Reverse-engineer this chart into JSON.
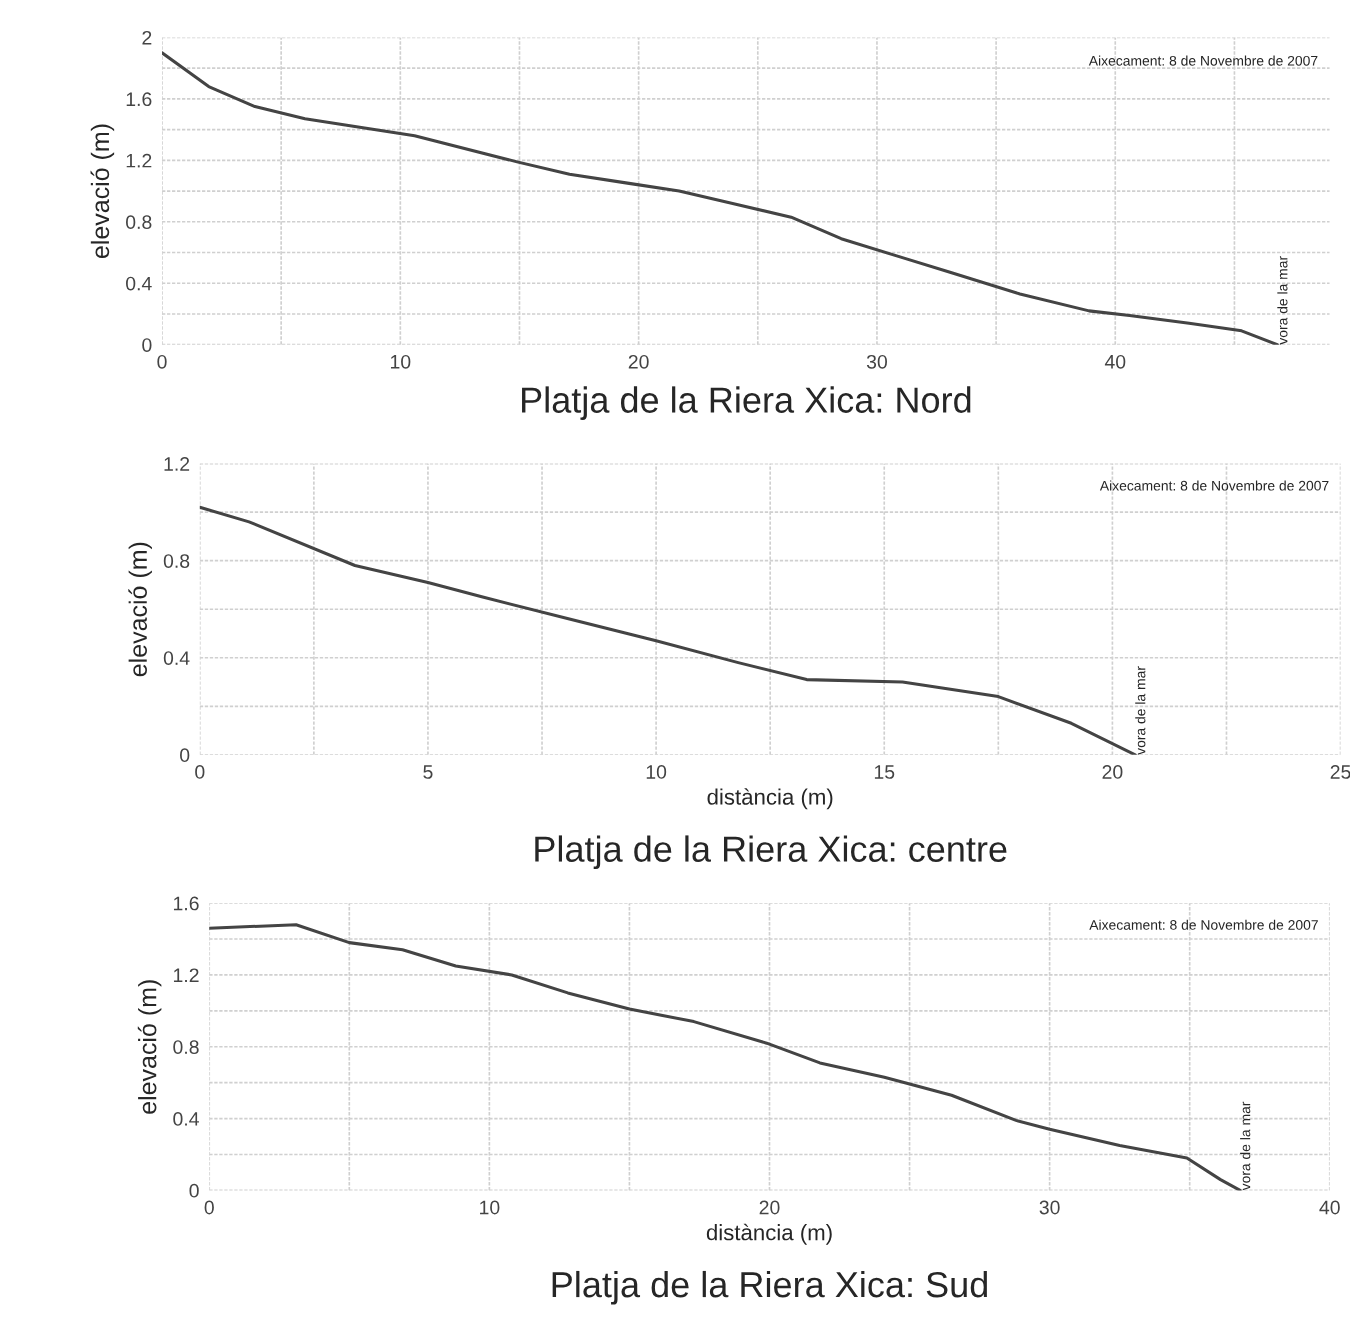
{
  "chart_data": [
    {
      "type": "line",
      "title": "Platja de la Riera Xica: Nord",
      "ylabel": "elevació (m)",
      "xlim": [
        0,
        49
      ],
      "xticks": [
        0,
        10,
        20,
        30,
        40
      ],
      "ylim": [
        0,
        2
      ],
      "yticks": [
        0,
        0.4,
        0.8,
        1.2,
        1.6,
        2
      ],
      "grid": true,
      "annotations": [
        "Aixecament: 8 de Novembre de 2007",
        {
          "text": "vora de la mar",
          "x": 46.8,
          "y": 0
        }
      ],
      "series": [
        {
          "color": "#444444",
          "x": [
            0,
            1.96,
            3.9,
            6,
            8.5,
            10.6,
            14.9,
            17.1,
            19.6,
            21.7,
            23.9,
            26.4,
            28.5,
            31,
            33.1,
            36,
            38.9,
            40.6,
            43.1,
            45.3,
            46.8
          ],
          "values": [
            1.9,
            1.68,
            1.55,
            1.47,
            1.41,
            1.36,
            1.19,
            1.11,
            1.05,
            1.0,
            0.92,
            0.83,
            0.69,
            0.57,
            0.47,
            0.33,
            0.22,
            0.19,
            0.14,
            0.09,
            0
          ]
        }
      ]
    },
    {
      "type": "line",
      "title": "Platja de la Riera Xica: centre",
      "xlabel": "distància (m)",
      "ylabel": "elevació (m)",
      "xlim": [
        0,
        25
      ],
      "xticks": [
        0,
        5,
        10,
        15,
        20,
        25
      ],
      "ylim": [
        0,
        1.2
      ],
      "yticks": [
        0,
        0.4,
        0.8,
        1.2
      ],
      "grid": true,
      "annotations": [
        "Aixecament: 8 de Novembre de 2007",
        {
          "text": "vora de la mar",
          "x": 20.5,
          "y": 0
        }
      ],
      "series": [
        {
          "color": "#444444",
          "x": [
            0,
            1.08,
            3.4,
            5,
            6.2,
            8.1,
            10,
            11.8,
            13.3,
            15.4,
            17.5,
            19.1,
            20.5
          ],
          "values": [
            1.02,
            0.96,
            0.78,
            0.71,
            0.65,
            0.56,
            0.47,
            0.38,
            0.31,
            0.3,
            0.24,
            0.13,
            0
          ]
        }
      ]
    },
    {
      "type": "line",
      "title": "Platja de la Riera Xica: Sud",
      "xlabel": "distància (m)",
      "ylabel": "elevació (m)",
      "xlim": [
        0,
        40
      ],
      "xticks": [
        0,
        10,
        20,
        30,
        40
      ],
      "ylim": [
        0,
        1.6
      ],
      "yticks": [
        0,
        0.4,
        0.8,
        1.2,
        1.6
      ],
      "grid": true,
      "annotations": [
        "Aixecament: 8 de Novembre de 2007",
        {
          "text": "vora de la mar",
          "x": 36.8,
          "y": 0
        }
      ],
      "series": [
        {
          "color": "#444444",
          "x": [
            0,
            3.1,
            5,
            6.9,
            8.8,
            10.8,
            12.8,
            15,
            17.3,
            19.9,
            21.8,
            24.1,
            26.5,
            28.8,
            30,
            32.5,
            34.9,
            36.1,
            36.8
          ],
          "values": [
            1.46,
            1.48,
            1.38,
            1.34,
            1.25,
            1.2,
            1.1,
            1.01,
            0.94,
            0.82,
            0.71,
            0.63,
            0.53,
            0.39,
            0.34,
            0.25,
            0.18,
            0.06,
            0
          ]
        }
      ]
    }
  ]
}
